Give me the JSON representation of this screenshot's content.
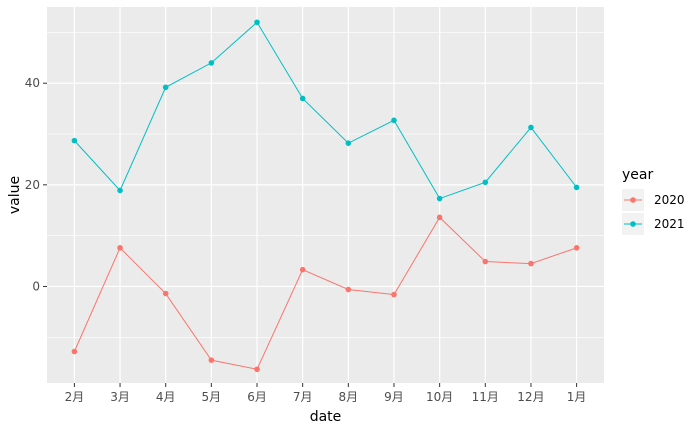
{
  "chart_data": {
    "type": "line",
    "title": "",
    "xlabel": "date",
    "ylabel": "value",
    "categories": [
      "2月",
      "3月",
      "4月",
      "5月",
      "6月",
      "7月",
      "8月",
      "9月",
      "10月",
      "11月",
      "12月",
      "1月"
    ],
    "ylim": [
      -19,
      55
    ],
    "yticks": [
      0,
      20,
      40
    ],
    "grid": true,
    "legend": {
      "title": "year",
      "placement": "right"
    },
    "series": [
      {
        "name": "2020",
        "color": "#F8766D",
        "values": [
          -12.8,
          7.6,
          -1.4,
          -14.5,
          -16.3,
          3.3,
          -0.6,
          -1.6,
          13.6,
          4.9,
          4.5,
          7.6
        ]
      },
      {
        "name": "2021",
        "color": "#00BFC4",
        "values": [
          28.7,
          18.9,
          39.2,
          44.0,
          52.0,
          37.0,
          28.2,
          32.7,
          17.3,
          20.5,
          31.3,
          19.5
        ]
      }
    ]
  }
}
